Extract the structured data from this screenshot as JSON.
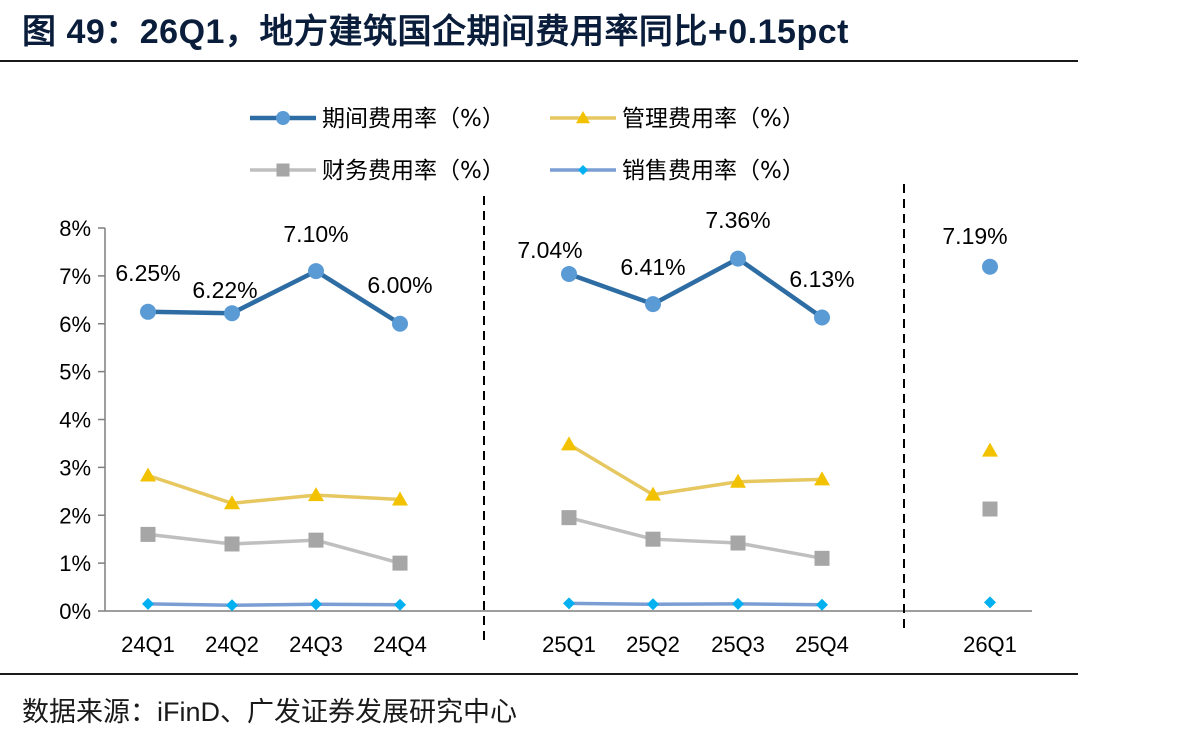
{
  "header": {
    "title": "图 49：26Q1，地方建筑国企期间费用率同比+0.15pct"
  },
  "footer": {
    "source": "数据来源：iFinD、广发证券发展研究中心"
  },
  "chart_data": {
    "type": "line",
    "categories": [
      "24Q1",
      "24Q2",
      "24Q3",
      "24Q4",
      "25Q1",
      "25Q2",
      "25Q3",
      "25Q4",
      "26Q1"
    ],
    "segments": [
      [
        0,
        3
      ],
      [
        4,
        7
      ],
      [
        8,
        8
      ]
    ],
    "ylim": [
      0,
      8
    ],
    "yticks": [
      "0%",
      "1%",
      "2%",
      "3%",
      "4%",
      "5%",
      "6%",
      "7%",
      "8%"
    ],
    "legend_position": "top",
    "grid": false,
    "series": [
      {
        "name": "期间费用率（%）",
        "color": "#2e6da4",
        "marker": "circle",
        "values": [
          6.25,
          6.22,
          7.1,
          6.0,
          7.04,
          6.41,
          7.36,
          6.13,
          7.19
        ],
        "labels": [
          "6.25%",
          "6.22%",
          "7.10%",
          "6.00%",
          "7.04%",
          "6.41%",
          "7.36%",
          "6.13%",
          "7.19%"
        ]
      },
      {
        "name": "管理费用率（%）",
        "color": "#f2c200",
        "line_color": "#e6c760",
        "marker": "triangle",
        "values": [
          2.83,
          2.25,
          2.42,
          2.33,
          3.48,
          2.43,
          2.7,
          2.75,
          3.35
        ]
      },
      {
        "name": "财务费用率（%）",
        "color": "#a6a6a6",
        "line_color": "#bfbfbf",
        "marker": "square",
        "values": [
          1.6,
          1.4,
          1.48,
          1.0,
          1.95,
          1.5,
          1.42,
          1.1,
          2.13
        ]
      },
      {
        "name": "销售费用率（%）",
        "color": "#00b0f0",
        "line_color": "#7a9ed3",
        "marker": "diamond",
        "values": [
          0.15,
          0.12,
          0.14,
          0.13,
          0.16,
          0.14,
          0.15,
          0.13,
          0.18
        ]
      }
    ]
  }
}
